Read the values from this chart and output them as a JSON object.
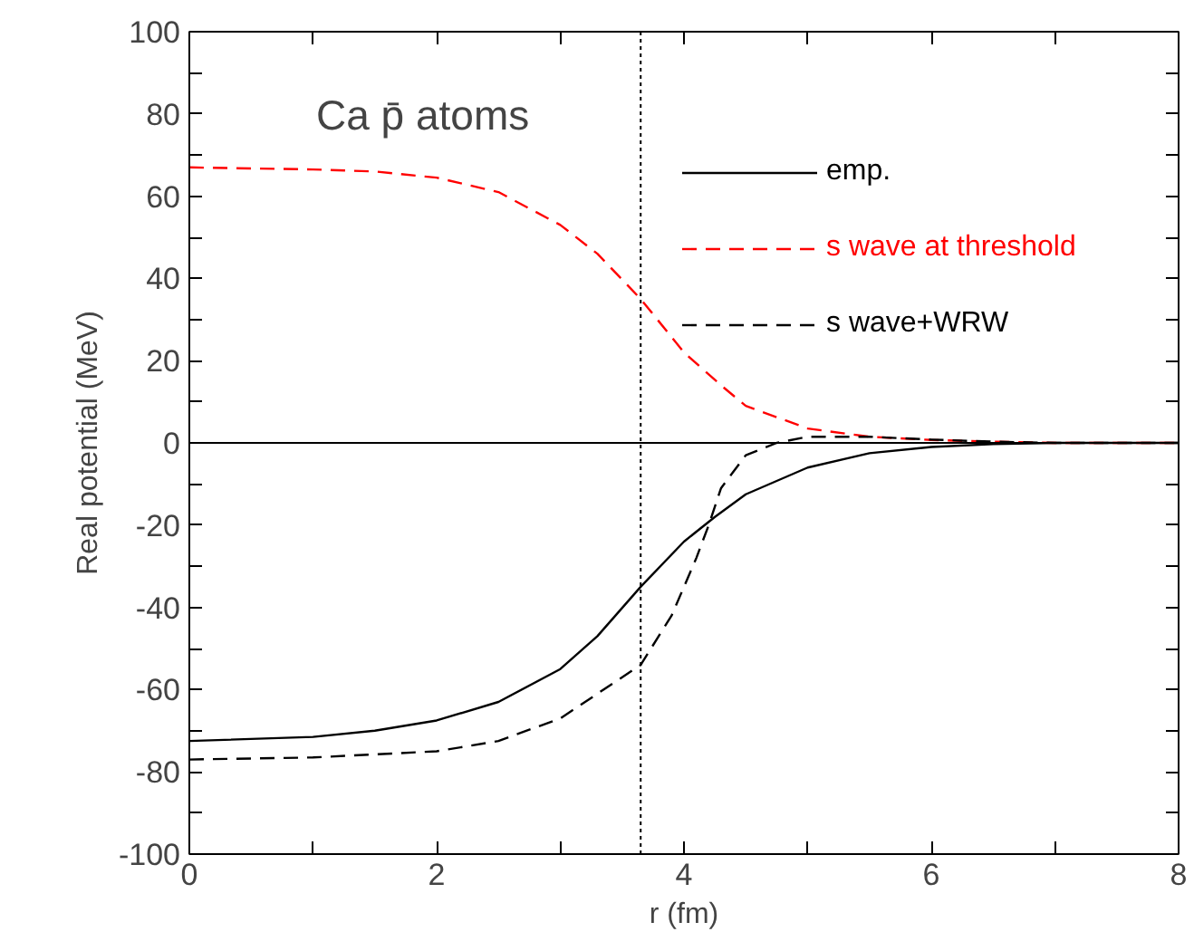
{
  "chart_data": {
    "type": "line",
    "xlabel": "r (fm)",
    "ylabel": "Real potential (MeV)",
    "annotations": [
      "Ca p̄ atoms"
    ],
    "xlim": [
      0,
      8
    ],
    "ylim": [
      -100,
      100
    ],
    "xticks": [
      0,
      {
        "value": 1,
        "label": null
      },
      2,
      {
        "value": 3,
        "label": null
      },
      4,
      {
        "value": 5,
        "label": null
      },
      6,
      {
        "value": 7,
        "label": null
      },
      8
    ],
    "yticks": [
      -100,
      {
        "value": -90,
        "label": null
      },
      -80,
      {
        "value": -70,
        "label": null
      },
      -60,
      {
        "value": -50,
        "label": null
      },
      -40,
      {
        "value": -30,
        "label": null
      },
      -20,
      {
        "value": -10,
        "label": null
      },
      0,
      {
        "value": 10,
        "label": null
      },
      20,
      {
        "value": 30,
        "label": null
      },
      40,
      {
        "value": 50,
        "label": null
      },
      60,
      {
        "value": 70,
        "label": null
      },
      80,
      {
        "value": 90,
        "label": null
      },
      100
    ],
    "grid": false,
    "legend": "top right",
    "ref_lines": [
      {
        "axis": "x",
        "value": 3.65,
        "label": null,
        "color": "#000000",
        "line_style": "dotted"
      },
      {
        "axis": "y",
        "value": 0,
        "label": null,
        "color": "#000000",
        "line_style": "solid"
      }
    ],
    "series": [
      {
        "name": "emp.",
        "color": "#000000",
        "line_style": "solid",
        "x": [
          0,
          1,
          1.5,
          2,
          2.5,
          3,
          3.3,
          3.65,
          4,
          4.25,
          4.5,
          5,
          5.5,
          6,
          6.5,
          7,
          8
        ],
        "values": [
          -72.5,
          -71.5,
          -70,
          -67.5,
          -63,
          -55,
          -47,
          -35,
          -24,
          -18,
          -12.5,
          -6,
          -2.5,
          -1,
          -0.3,
          0,
          0
        ]
      },
      {
        "name": "s wave at threshold",
        "color": "#ff0000",
        "line_style": "dashed",
        "x": [
          0,
          1,
          1.5,
          2,
          2.5,
          3,
          3.3,
          3.65,
          4,
          4.3,
          4.5,
          5,
          5.5,
          6,
          6.5,
          7,
          8
        ],
        "values": [
          67,
          66.5,
          66,
          64.5,
          61,
          53,
          46,
          35,
          22,
          14,
          9,
          3.5,
          1.5,
          0.7,
          0.3,
          0,
          0
        ]
      },
      {
        "name": "s wave+WRW",
        "color": "#000000",
        "line_style": "dashed",
        "x": [
          0,
          1,
          2,
          2.5,
          3,
          3.3,
          3.65,
          3.9,
          4.1,
          4.2,
          4.3,
          4.5,
          4.75,
          5,
          5.5,
          6,
          6.5,
          7,
          8
        ],
        "values": [
          -77,
          -76.5,
          -75,
          -72.5,
          -67,
          -61,
          -54,
          -42,
          -28,
          -20,
          -11,
          -3,
          0,
          1.5,
          1.5,
          0.8,
          0.3,
          0,
          0
        ]
      }
    ]
  }
}
